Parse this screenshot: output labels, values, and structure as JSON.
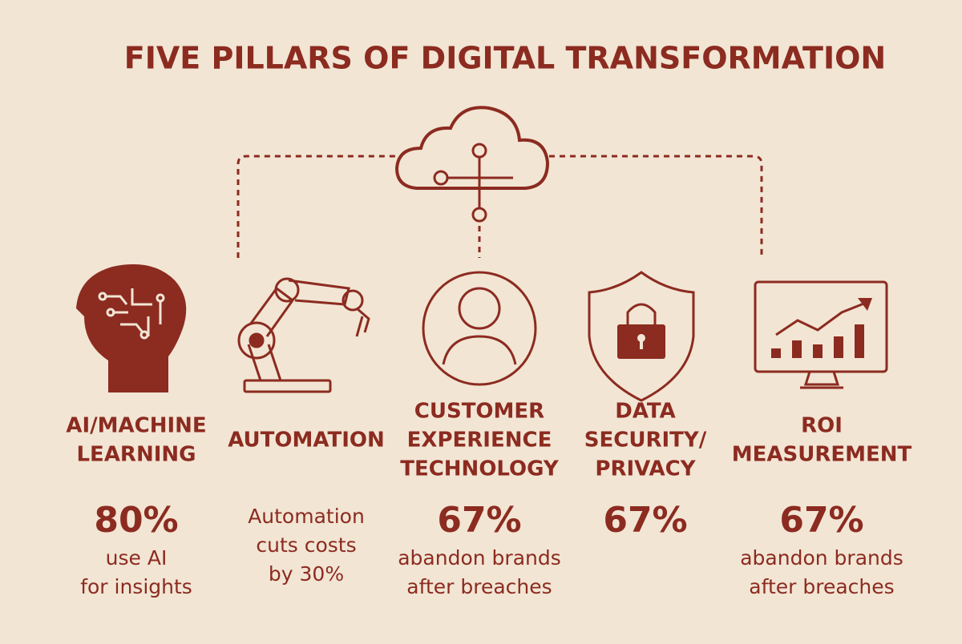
{
  "header": {
    "title": "FIVE PILLARS OF DIGITAL TRANSFORMATION"
  },
  "pillars": [
    {
      "label": [
        "AI/MACHINE",
        "LEARNING"
      ],
      "stat": "80%",
      "description": [
        "use AI",
        "for insights"
      ]
    },
    {
      "label": [
        "AUTOMATION"
      ],
      "description": [
        "Automation",
        "cuts costs",
        "by 30%"
      ]
    },
    {
      "label": [
        "CUSTOMER",
        "EXPERIENCE",
        "TECHNOLOGY"
      ],
      "stat": "67%",
      "description": [
        "abandon brands",
        "after breaches"
      ]
    },
    {
      "label": [
        "DATA",
        "SECURITY/",
        "PRIVACY"
      ],
      "stat": "67%"
    },
    {
      "label": [
        "ROI",
        "MEASUREMENT"
      ],
      "stat": "67%",
      "description": [
        "abandon brands",
        "after breaches"
      ]
    }
  ]
}
